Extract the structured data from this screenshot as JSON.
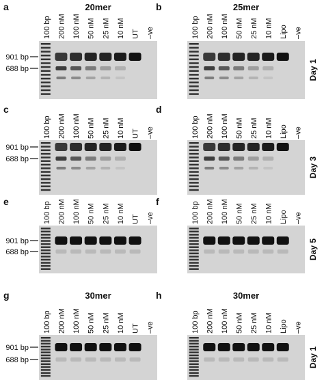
{
  "panels": [
    {
      "letter": "a",
      "title": "20mer",
      "lanes": [
        "100 bp",
        "200 nM",
        "100 nM",
        "50 nM",
        "25 nM",
        "10 nM",
        "UT",
        "–ve"
      ],
      "bp_labels": [
        "901 bp",
        "688 bp"
      ]
    },
    {
      "letter": "b",
      "title": "25mer",
      "lanes": [
        "100 bp",
        "200 nM",
        "100 nM",
        "50 nM",
        "25 nM",
        "10 nM",
        "Lipo",
        "–ve"
      ],
      "day": "Day 1"
    },
    {
      "letter": "c",
      "lanes": [
        "100 bp",
        "200 nM",
        "100 nM",
        "50 nM",
        "25 nM",
        "10 nM",
        "UT",
        "–ve"
      ],
      "bp_labels": [
        "901 bp",
        "688 bp"
      ]
    },
    {
      "letter": "d",
      "lanes": [
        "100 bp",
        "200 nM",
        "100 nM",
        "50 nM",
        "25 nM",
        "10 nM",
        "Lipo",
        "–ve"
      ],
      "day": "Day 3"
    },
    {
      "letter": "e",
      "lanes": [
        "100 bp",
        "200 nM",
        "100 nM",
        "50 nM",
        "25 nM",
        "10 nM",
        "UT",
        "–ve"
      ],
      "bp_labels": [
        "901 bp",
        "688 bp"
      ]
    },
    {
      "letter": "f",
      "lanes": [
        "100 bp",
        "200 nM",
        "100 nM",
        "50 nM",
        "25 nM",
        "10 nM",
        "Lipo",
        "–ve"
      ],
      "day": "Day 5"
    },
    {
      "letter": "g",
      "title": "30mer",
      "lanes": [
        "100 bp",
        "200 nM",
        "100 nM",
        "50 nM",
        "25 nM",
        "10 nM",
        "UT",
        "–ve"
      ],
      "bp_labels": [
        "901 bp",
        "688 bp"
      ]
    },
    {
      "letter": "h",
      "title": "30mer",
      "lanes": [
        "100 bp",
        "200 nM",
        "100 nM",
        "50 nM",
        "25 nM",
        "10 nM",
        "Lipo",
        "–ve"
      ],
      "day": "Day 1"
    }
  ]
}
